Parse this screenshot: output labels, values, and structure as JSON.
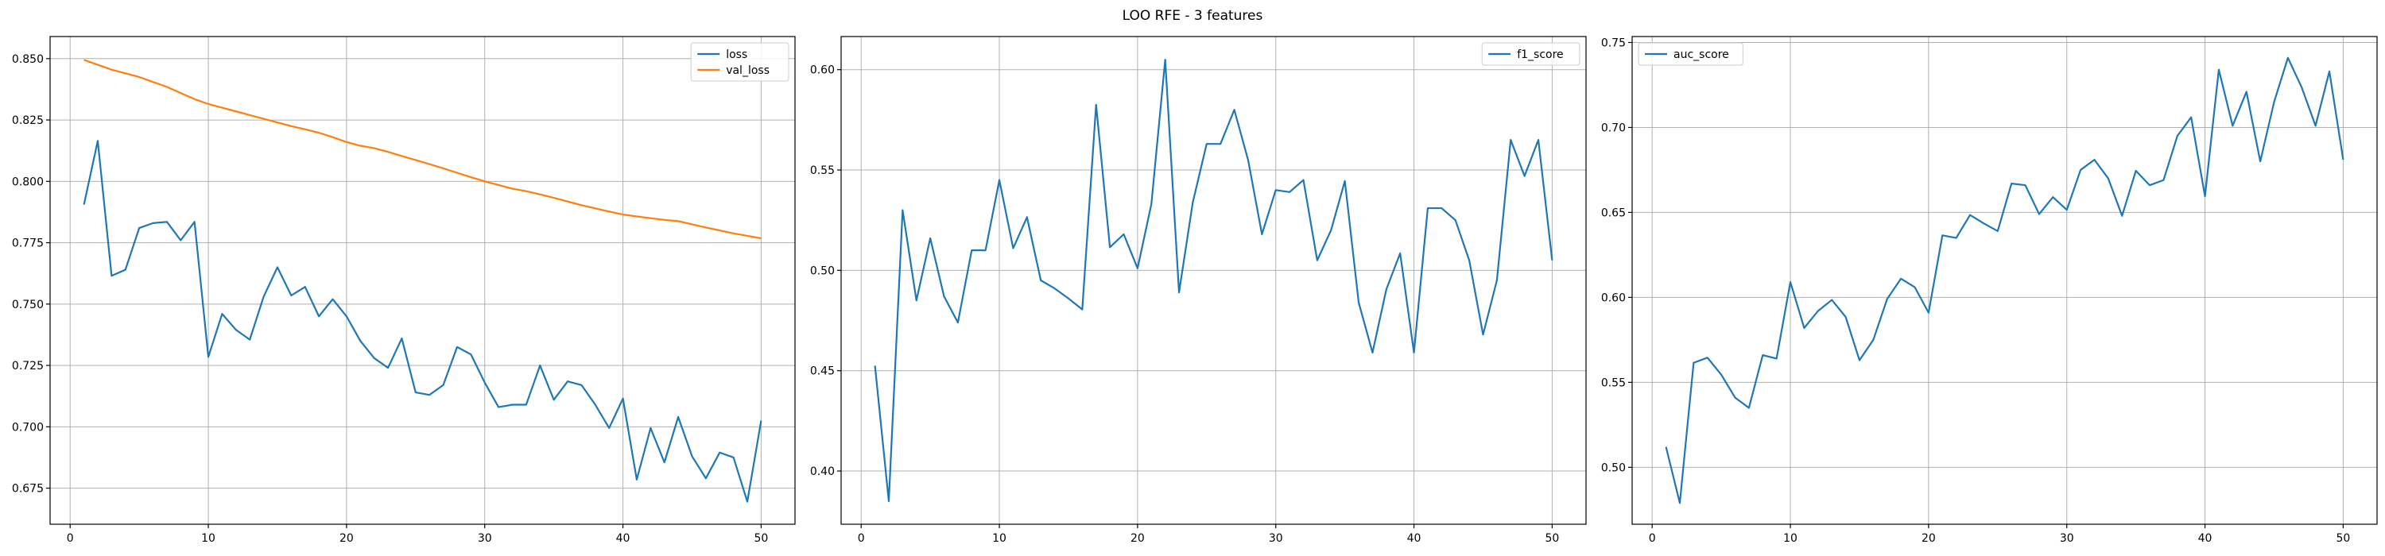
{
  "figure": {
    "title": "LOO RFE - 3 features"
  },
  "chart_data": [
    {
      "type": "line",
      "title": "",
      "xlabel": "",
      "ylabel": "",
      "xlim": [
        -1.45,
        52.45
      ],
      "ylim": [
        0.6603,
        0.859
      ],
      "xticks": [
        0,
        10,
        20,
        30,
        40,
        50
      ],
      "yticks": [
        0.675,
        0.7,
        0.725,
        0.75,
        0.775,
        0.8,
        0.825,
        0.85
      ],
      "ytick_labels": [
        "0.675",
        "0.700",
        "0.725",
        "0.750",
        "0.775",
        "0.800",
        "0.825",
        "0.850"
      ],
      "grid": true,
      "legend": "top-right",
      "x": [
        1,
        2,
        3,
        4,
        5,
        6,
        7,
        8,
        9,
        10,
        11,
        12,
        13,
        14,
        15,
        16,
        17,
        18,
        19,
        20,
        21,
        22,
        23,
        24,
        25,
        26,
        27,
        28,
        29,
        30,
        31,
        32,
        33,
        34,
        35,
        36,
        37,
        38,
        39,
        40,
        41,
        42,
        43,
        44,
        45,
        46,
        47,
        48,
        49,
        50
      ],
      "series": [
        {
          "name": "loss",
          "color": "#1f77b4",
          "values": [
            0.7905,
            0.8165,
            0.7615,
            0.764,
            0.781,
            0.783,
            0.7835,
            0.776,
            0.7835,
            0.7285,
            0.746,
            0.7395,
            0.7355,
            0.753,
            0.765,
            0.7535,
            0.757,
            0.745,
            0.752,
            0.745,
            0.735,
            0.728,
            0.724,
            0.736,
            0.714,
            0.713,
            0.717,
            0.7325,
            0.7295,
            0.718,
            0.708,
            0.709,
            0.709,
            0.725,
            0.711,
            0.7185,
            0.717,
            0.709,
            0.6995,
            0.7115,
            0.6785,
            0.6995,
            0.6855,
            0.704,
            0.688,
            0.679,
            0.6895,
            0.6875,
            0.6695,
            0.7025
          ]
        },
        {
          "name": "val_loss",
          "color": "#ff7f0e",
          "values": [
            0.8495,
            0.8475,
            0.8455,
            0.844,
            0.8425,
            0.8405,
            0.8385,
            0.836,
            0.8335,
            0.8315,
            0.83,
            0.8285,
            0.827,
            0.8255,
            0.824,
            0.8225,
            0.8212,
            0.8198,
            0.818,
            0.816,
            0.8145,
            0.8135,
            0.812,
            0.8103,
            0.8087,
            0.807,
            0.8053,
            0.8035,
            0.8017,
            0.8,
            0.7985,
            0.797,
            0.796,
            0.7947,
            0.7933,
            0.7918,
            0.7903,
            0.789,
            0.7877,
            0.7865,
            0.7857,
            0.785,
            0.7843,
            0.7838,
            0.7825,
            0.7812,
            0.78,
            0.7788,
            0.7778,
            0.7768
          ]
        }
      ]
    },
    {
      "type": "line",
      "title": "",
      "xlabel": "",
      "ylabel": "",
      "xlim": [
        -1.45,
        52.45
      ],
      "ylim": [
        0.3735,
        0.6165
      ],
      "xticks": [
        0,
        10,
        20,
        30,
        40,
        50
      ],
      "yticks": [
        0.4,
        0.45,
        0.5,
        0.55,
        0.6
      ],
      "ytick_labels": [
        "0.40",
        "0.45",
        "0.50",
        "0.55",
        "0.60"
      ],
      "grid": true,
      "legend": "top-right",
      "x": [
        1,
        2,
        3,
        4,
        5,
        6,
        7,
        8,
        9,
        10,
        11,
        12,
        13,
        14,
        15,
        16,
        17,
        18,
        19,
        20,
        21,
        22,
        23,
        24,
        25,
        26,
        27,
        28,
        29,
        30,
        31,
        32,
        33,
        34,
        35,
        36,
        37,
        38,
        39,
        40,
        41,
        42,
        43,
        44,
        45,
        46,
        47,
        48,
        49,
        50
      ],
      "series": [
        {
          "name": "f1_score",
          "color": "#1f77b4",
          "values": [
            0.4525,
            0.385,
            0.53,
            0.485,
            0.516,
            0.487,
            0.474,
            0.51,
            0.51,
            0.545,
            0.511,
            0.5265,
            0.495,
            0.491,
            0.486,
            0.4805,
            0.5825,
            0.5115,
            0.518,
            0.501,
            0.533,
            0.605,
            0.489,
            0.534,
            0.563,
            0.563,
            0.58,
            0.555,
            0.518,
            0.54,
            0.539,
            0.545,
            0.505,
            0.52,
            0.5445,
            0.484,
            0.459,
            0.4905,
            0.5085,
            0.459,
            0.531,
            0.531,
            0.525,
            0.505,
            0.468,
            0.495,
            0.565,
            0.547,
            0.565,
            0.505
          ]
        }
      ]
    },
    {
      "type": "line",
      "title": "",
      "xlabel": "",
      "ylabel": "",
      "xlim": [
        -1.45,
        52.45
      ],
      "ylim": [
        0.4665,
        0.7535
      ],
      "xticks": [
        0,
        10,
        20,
        30,
        40,
        50
      ],
      "yticks": [
        0.5,
        0.55,
        0.6,
        0.65,
        0.7,
        0.75
      ],
      "ytick_labels": [
        "0.50",
        "0.55",
        "0.60",
        "0.65",
        "0.70",
        "0.75"
      ],
      "grid": true,
      "legend": "top-left",
      "x": [
        1,
        2,
        3,
        4,
        5,
        6,
        7,
        8,
        9,
        10,
        11,
        12,
        13,
        14,
        15,
        16,
        17,
        18,
        19,
        20,
        21,
        22,
        23,
        24,
        25,
        26,
        27,
        28,
        29,
        30,
        31,
        32,
        33,
        34,
        35,
        36,
        37,
        38,
        39,
        40,
        41,
        42,
        43,
        44,
        45,
        46,
        47,
        48,
        49,
        50
      ],
      "series": [
        {
          "name": "auc_score",
          "color": "#1f77b4",
          "values": [
            0.512,
            0.479,
            0.5615,
            0.5645,
            0.5545,
            0.541,
            0.535,
            0.566,
            0.564,
            0.609,
            0.582,
            0.592,
            0.5985,
            0.5885,
            0.563,
            0.575,
            0.599,
            0.611,
            0.606,
            0.591,
            0.6365,
            0.635,
            0.6485,
            0.6435,
            0.639,
            0.667,
            0.666,
            0.649,
            0.659,
            0.6515,
            0.675,
            0.681,
            0.67,
            0.648,
            0.6745,
            0.666,
            0.669,
            0.695,
            0.706,
            0.6595,
            0.734,
            0.701,
            0.721,
            0.68,
            0.715,
            0.741,
            0.7235,
            0.701,
            0.733,
            0.681
          ]
        }
      ]
    }
  ]
}
